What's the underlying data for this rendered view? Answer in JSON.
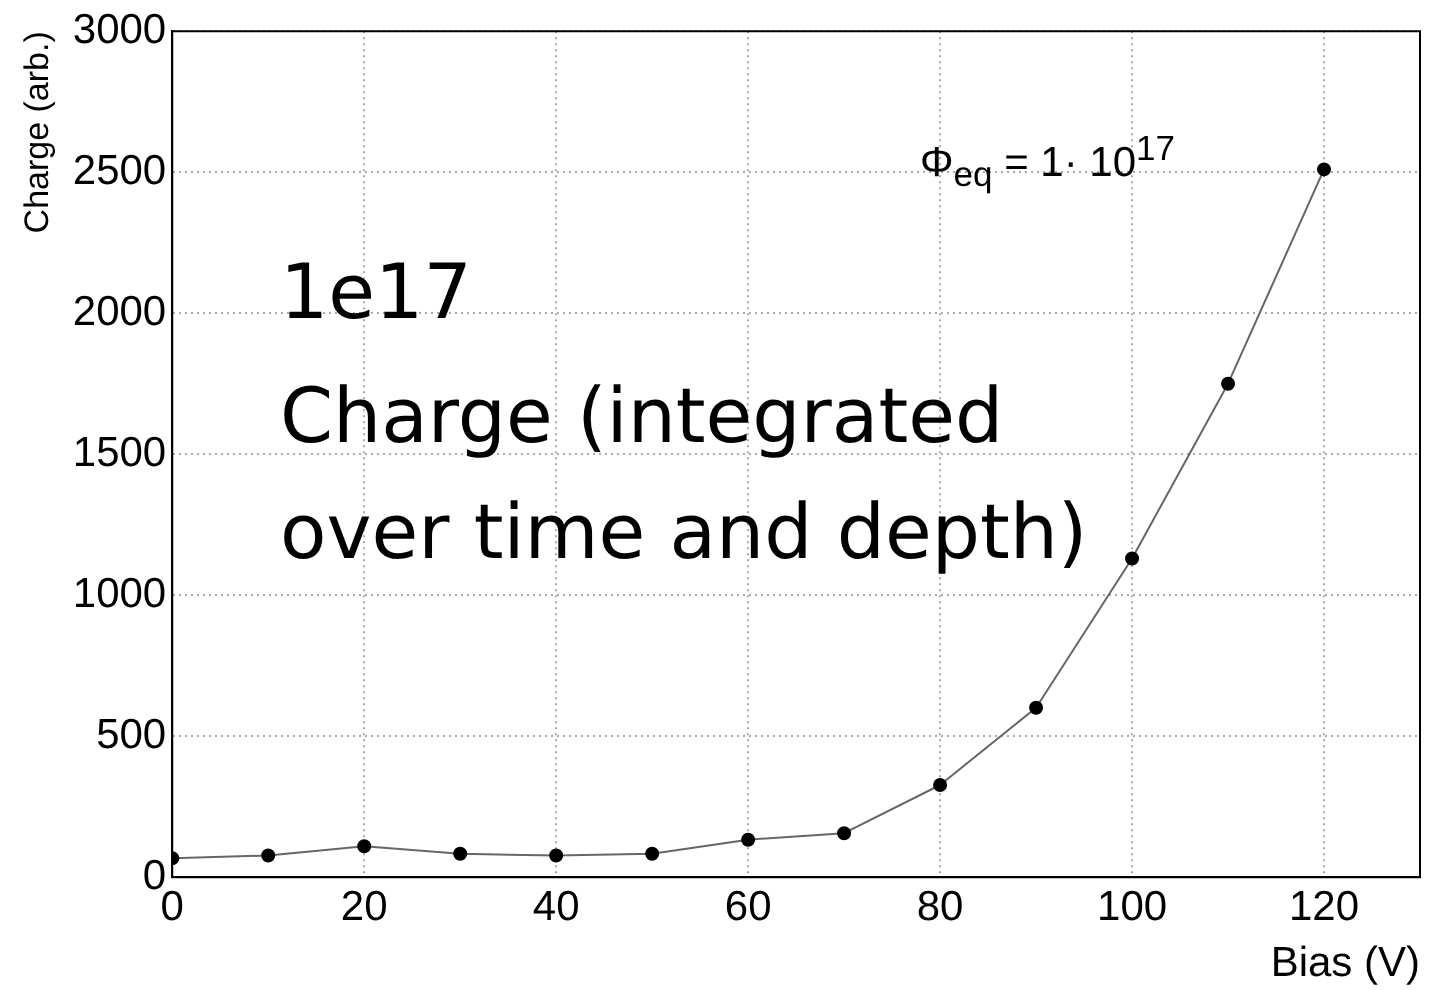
{
  "chart_data": {
    "type": "line",
    "xlabel": "Bias (V)",
    "ylabel": "Charge (arb.)",
    "x": [
      0,
      10,
      20,
      30,
      40,
      50,
      60,
      70,
      80,
      90,
      100,
      110,
      120
    ],
    "series": [
      {
        "color": "#000000",
        "values": [
          67,
          77,
          110,
          83,
          77,
          83,
          133,
          156,
          327,
          601,
          1130,
          1750,
          2510
        ]
      }
    ],
    "xlim": [
      0,
      130
    ],
    "xticks": [
      0,
      20,
      40,
      60,
      80,
      100,
      120
    ],
    "ylim": [
      0,
      3000
    ],
    "yticks": [
      0,
      500,
      1000,
      1500,
      2000,
      2500,
      3000
    ],
    "grid": true,
    "legend": false,
    "marker": "circle",
    "line_style": "solid",
    "annotations": [
      "Φ$_{eq}$ = 1· 10$^{17}$",
      "1e17",
      "Charge (integrated",
      "over time and depth)"
    ]
  }
}
